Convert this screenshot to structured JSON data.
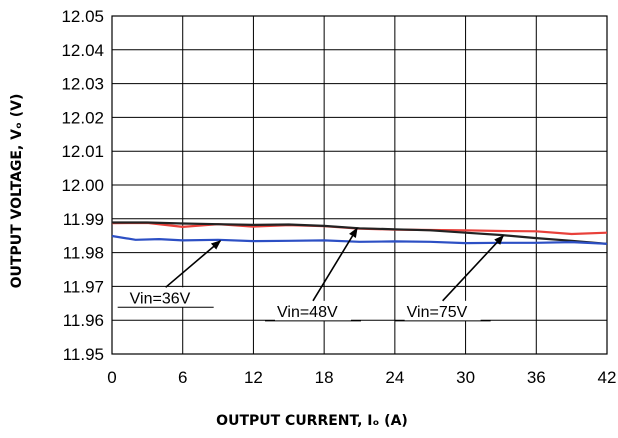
{
  "chart_data": {
    "type": "line",
    "xlabel": "OUTPUT CURRENT, Iₒ (A)",
    "ylabel": "OUTPUT VOLTAGE, Vₒ (V)",
    "xlim": [
      0,
      42
    ],
    "ylim": [
      11.95,
      12.05
    ],
    "x_ticks": [
      "0",
      "6",
      "12",
      "18",
      "24",
      "30",
      "36",
      "42"
    ],
    "y_ticks": [
      "11.95",
      "11.96",
      "11.97",
      "11.98",
      "11.99",
      "12.00",
      "12.01",
      "12.02",
      "12.03",
      "12.04",
      "12.05"
    ],
    "grid": true,
    "series": [
      {
        "color": "#e8403a",
        "x": [
          0,
          3,
          6,
          9,
          12,
          15,
          18,
          21,
          24,
          27,
          30,
          33,
          36,
          39,
          42
        ],
        "y": [
          11.9887,
          11.9888,
          11.9876,
          11.9884,
          11.9877,
          11.9881,
          11.9878,
          11.9871,
          11.9868,
          11.9867,
          11.9866,
          11.9864,
          11.9863,
          11.9855,
          11.9859
        ]
      },
      {
        "color": "#222222",
        "x": [
          0,
          3,
          6,
          9,
          12,
          15,
          18,
          21,
          24,
          27,
          30,
          33,
          36,
          39,
          42
        ],
        "y": [
          11.9889,
          11.9889,
          11.9886,
          11.9884,
          11.9882,
          11.9883,
          11.9879,
          11.9872,
          11.9869,
          11.9866,
          11.9859,
          11.9852,
          11.9843,
          11.9835,
          11.9826
        ]
      },
      {
        "color": "#2c4fc4",
        "x": [
          0,
          2,
          4,
          6,
          9,
          12,
          15,
          18,
          21,
          24,
          27,
          30,
          33,
          36,
          39,
          42
        ],
        "y": [
          11.9849,
          11.9838,
          11.984,
          11.9836,
          11.9838,
          11.9834,
          11.9835,
          11.9836,
          11.9832,
          11.9833,
          11.9832,
          11.9828,
          11.9829,
          11.9829,
          11.9831,
          11.9826
        ]
      }
    ],
    "annotations": [
      {
        "text": "Vin=36V",
        "x": 1.5,
        "y": 11.965,
        "arrow_to": [
          9.2,
          11.9835
        ]
      },
      {
        "text": "Vin=48V",
        "x": 14,
        "y": 11.961,
        "arrow_to": [
          20.8,
          11.9872
        ]
      },
      {
        "text": "Vin=75V",
        "x": 25,
        "y": 11.961,
        "arrow_to": [
          33.2,
          11.985
        ]
      }
    ]
  }
}
